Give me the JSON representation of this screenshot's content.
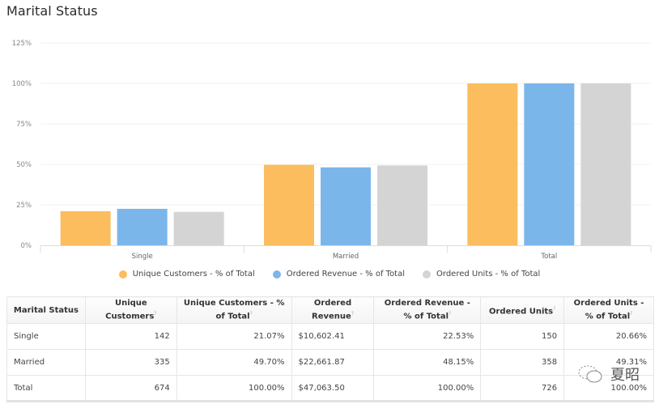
{
  "title": "Marital Status",
  "chart_data": {
    "type": "bar",
    "title": "Marital Status",
    "xlabel": "",
    "ylabel": "",
    "categories": [
      "Single",
      "Married",
      "Total"
    ],
    "series": [
      {
        "name": "Unique Customers - % of Total",
        "color": "#fbbd5e",
        "values": [
          21.07,
          49.7,
          100.0
        ]
      },
      {
        "name": "Ordered Revenue - % of Total",
        "color": "#7bb6eb",
        "values": [
          22.53,
          48.15,
          100.0
        ]
      },
      {
        "name": "Ordered Units - % of Total",
        "color": "#d4d4d4",
        "values": [
          20.66,
          49.31,
          100.0
        ]
      }
    ],
    "yticks": [
      "0%",
      "25%",
      "50%",
      "75%",
      "100%",
      "125%"
    ],
    "ylim": [
      0,
      125
    ],
    "grid": true,
    "legend_position": "bottom"
  },
  "table": {
    "headers": [
      {
        "label": "Marital Status",
        "info": false
      },
      {
        "label": "Unique Customers",
        "info": true
      },
      {
        "label": "Unique Customers - % of Total",
        "info": true
      },
      {
        "label": "Ordered Revenue",
        "info": true
      },
      {
        "label": "Ordered Revenue - % of Total",
        "info": true
      },
      {
        "label": "Ordered Units",
        "info": true
      },
      {
        "label": "Ordered Units - % of Total",
        "info": true
      }
    ],
    "info_mark": "?",
    "rows": [
      [
        "Single",
        "142",
        "21.07%",
        "$10,602.41",
        "22.53%",
        "150",
        "20.66%"
      ],
      [
        "Married",
        "335",
        "49.70%",
        "$22,661.87",
        "48.15%",
        "358",
        "49.31%"
      ],
      [
        "Total",
        "674",
        "100.00%",
        "$47,063.50",
        "100.00%",
        "726",
        "100.00%"
      ]
    ]
  },
  "watermark": {
    "text": "夏昭",
    "icon": "wechat-icon"
  }
}
